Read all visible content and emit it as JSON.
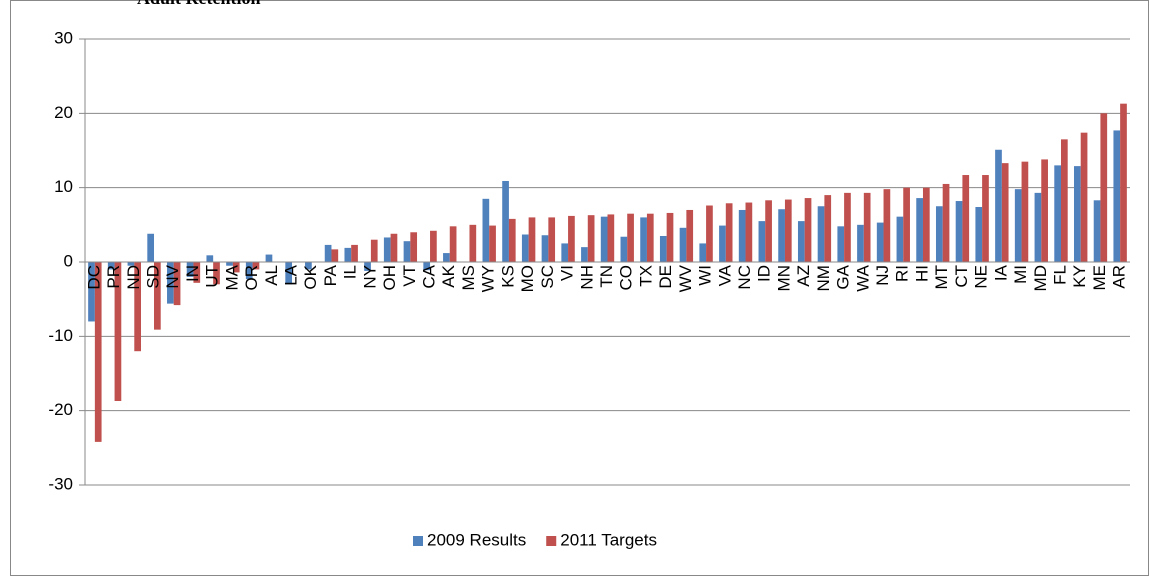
{
  "chart_data": {
    "type": "bar",
    "title": "Adult Retention",
    "categories": [
      "DC",
      "PR",
      "ND",
      "SD",
      "NV",
      "IN",
      "UT",
      "MA",
      "OR",
      "AL",
      "LA",
      "OK",
      "PA",
      "IL",
      "NY",
      "OH",
      "VT",
      "CA",
      "AK",
      "MS",
      "WY",
      "KS",
      "MO",
      "SC",
      "VI",
      "NH",
      "TN",
      "CO",
      "TX",
      "DE",
      "WV",
      "WI",
      "VA",
      "NC",
      "ID",
      "MN",
      "AZ",
      "NM",
      "GA",
      "WA",
      "NJ",
      "RI",
      "HI",
      "MT",
      "CT",
      "NE",
      "IA",
      "MI",
      "MD",
      "FL",
      "KY",
      "ME",
      "AR"
    ],
    "series": [
      {
        "name": "2009 Results",
        "color": "#4f81bd",
        "values": [
          -8,
          -1,
          -0.5,
          3.8,
          -5.6,
          -2,
          0.9,
          -0.5,
          -2.3,
          1,
          -3,
          -1,
          2.3,
          1.9,
          -1.2,
          3.3,
          2.8,
          -1.1,
          1.2,
          0,
          8.5,
          10.9,
          3.7,
          3.6,
          2.5,
          2,
          6.1,
          3.4,
          6,
          3.5,
          4.6,
          2.5,
          4.9,
          7,
          5.5,
          7.1,
          5.5,
          7.5,
          4.8,
          5,
          5.3,
          6.1,
          8.6,
          7.5,
          8.2,
          7.4,
          15.1,
          9.8,
          9.3,
          13,
          12.9,
          8.3,
          17.7
        ]
      },
      {
        "name": "2011 Targets",
        "color": "#c0504d",
        "values": [
          -24.2,
          -18.7,
          -12,
          -9.1,
          -5.8,
          -2.8,
          -3,
          -1.4,
          -1,
          0,
          0,
          0,
          1.7,
          2.3,
          3,
          3.8,
          4,
          4.2,
          4.8,
          5,
          4.9,
          5.8,
          6,
          6,
          6.2,
          6.3,
          6.4,
          6.5,
          6.5,
          6.6,
          7,
          7.6,
          7.9,
          8,
          8.3,
          8.4,
          8.6,
          9,
          9.3,
          9.3,
          9.8,
          10,
          10,
          10.5,
          11.7,
          11.7,
          13.3,
          13.5,
          13.8,
          16.5,
          17.4,
          20,
          21.3
        ]
      }
    ],
    "ylim": [
      -30,
      30
    ],
    "yticks": [
      -30,
      -20,
      -10,
      0,
      10,
      20,
      30
    ],
    "grid": true,
    "legend": "bottom"
  }
}
